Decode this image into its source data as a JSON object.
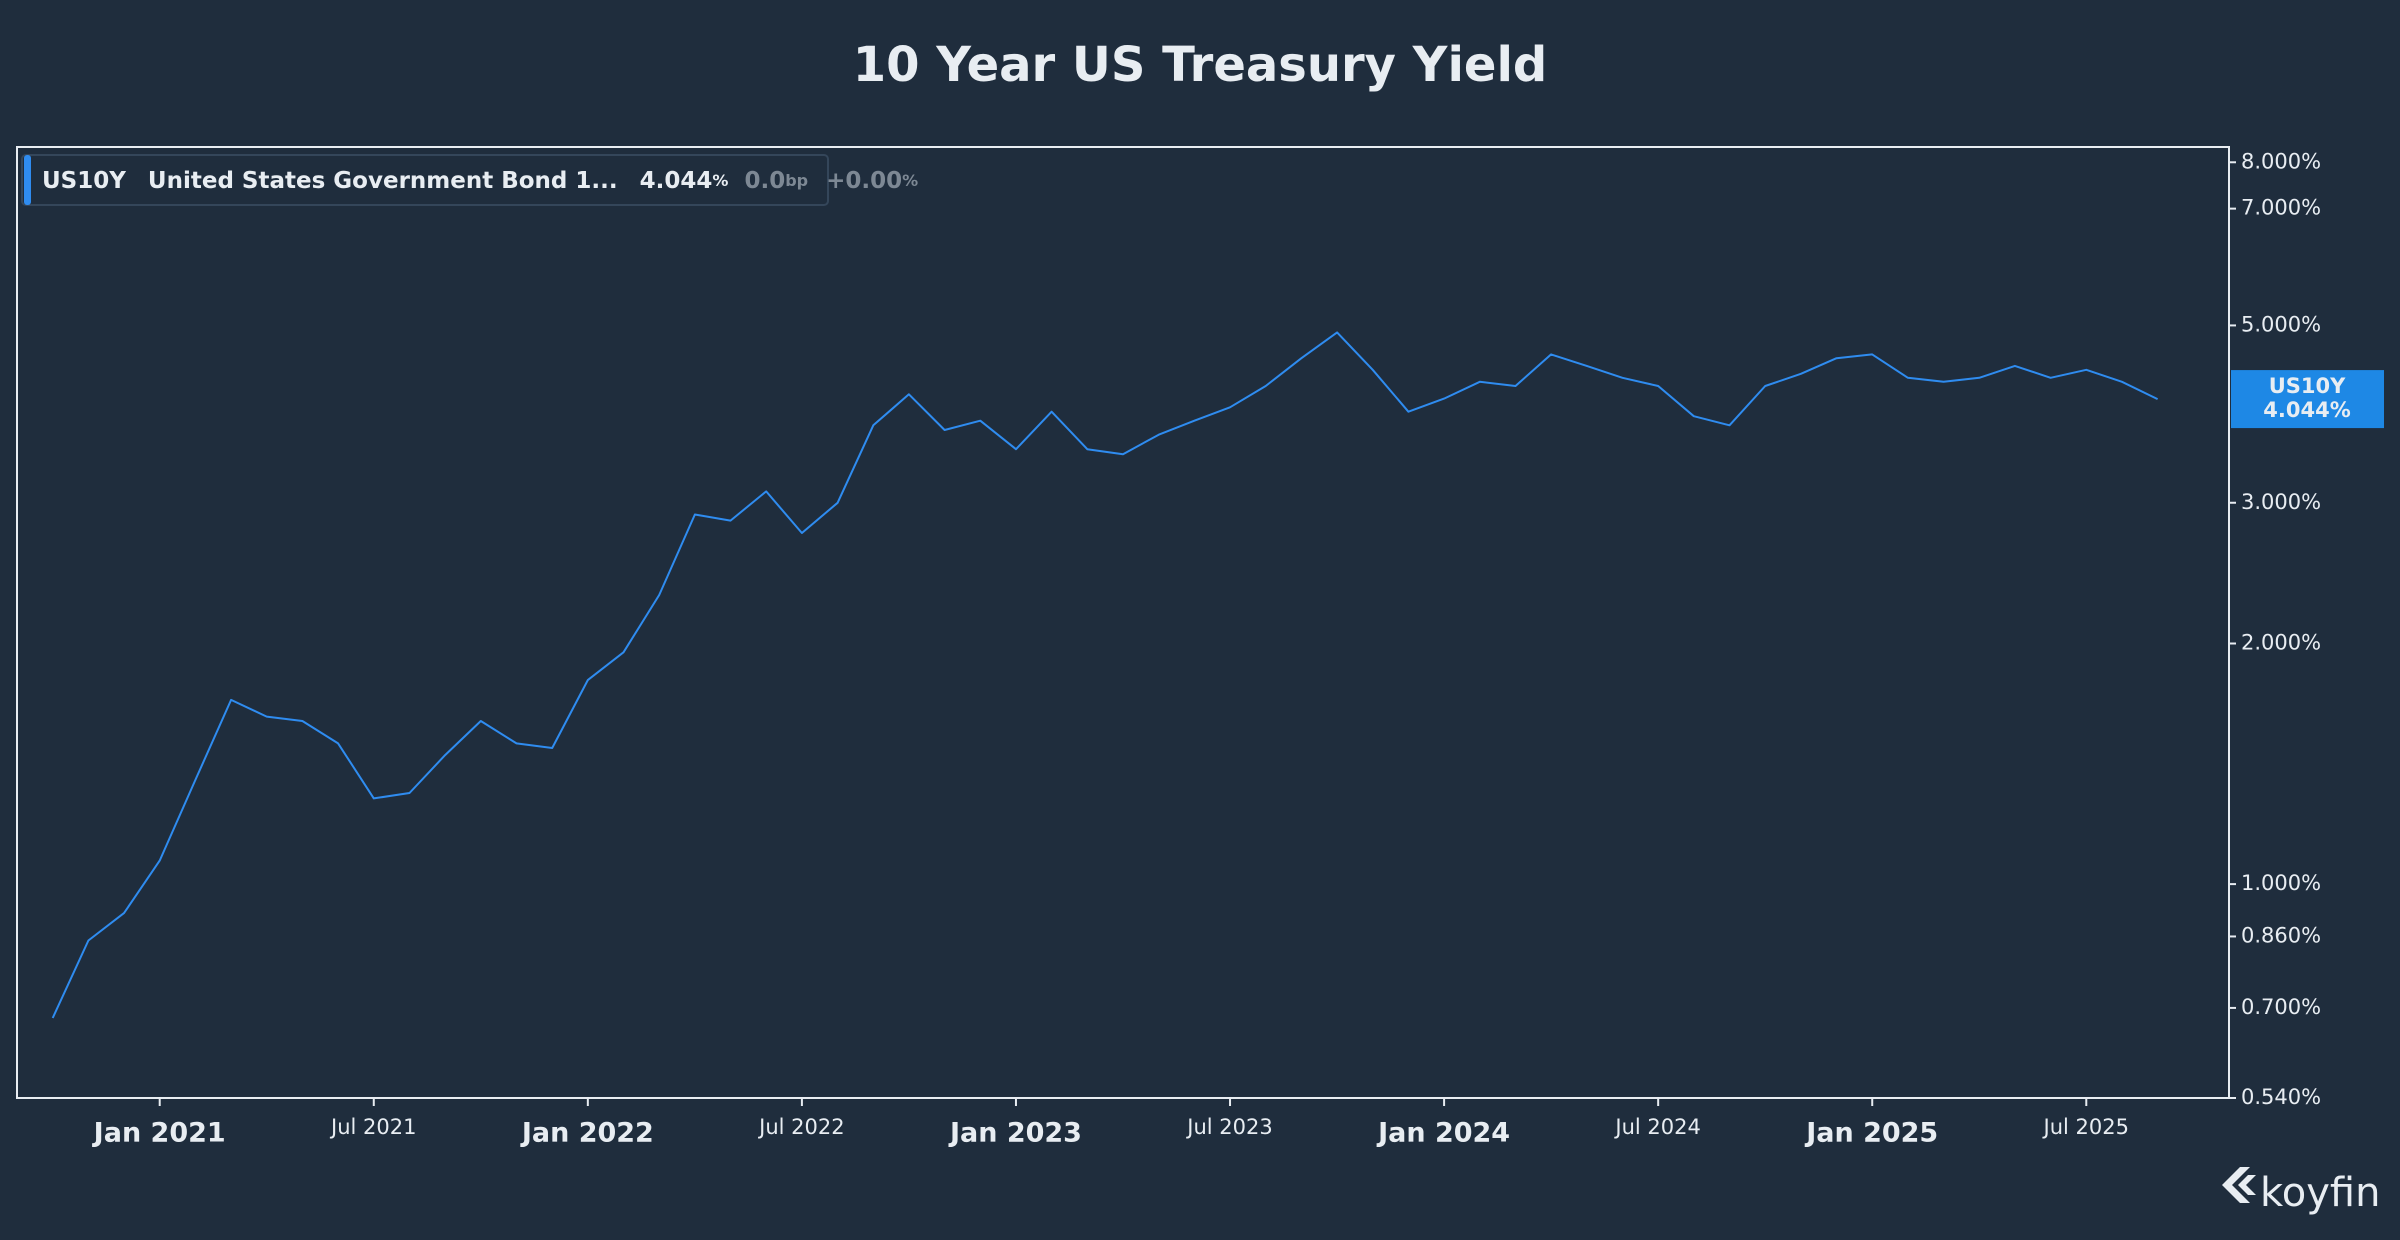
{
  "chart_data": {
    "type": "line",
    "title": "10 Year US Treasury Yield",
    "legend": {
      "ticker": "US10Y",
      "name": "United States Government Bond 1...",
      "value": "4.044",
      "value_unit": "%",
      "change": "0.0",
      "change_unit": "bp",
      "change_pct": "+0.00",
      "change_pct_unit": "%"
    },
    "badge": {
      "label": "US10Y",
      "value": "4.044%"
    },
    "watermark": "koyfin",
    "log_scale": true,
    "x": [
      "2020-10",
      "2020-11",
      "2020-12",
      "2021-01",
      "2021-02",
      "2021-03",
      "2021-04",
      "2021-05",
      "2021-06",
      "2021-07",
      "2021-08",
      "2021-09",
      "2021-10",
      "2021-11",
      "2021-12",
      "2022-01",
      "2022-02",
      "2022-03",
      "2022-04",
      "2022-05",
      "2022-06",
      "2022-07",
      "2022-08",
      "2022-09",
      "2022-10",
      "2022-11",
      "2022-12",
      "2023-01",
      "2023-02",
      "2023-03",
      "2023-04",
      "2023-05",
      "2023-06",
      "2023-07",
      "2023-08",
      "2023-09",
      "2023-10",
      "2023-11",
      "2023-12",
      "2024-01",
      "2024-02",
      "2024-03",
      "2024-04",
      "2024-05",
      "2024-06",
      "2024-07",
      "2024-08",
      "2024-09",
      "2024-10",
      "2024-11",
      "2024-12",
      "2025-01",
      "2025-02",
      "2025-03",
      "2025-04",
      "2025-05",
      "2025-06",
      "2025-07",
      "2025-08",
      "2025-09"
    ],
    "series": [
      {
        "name": "US10Y",
        "color": "#2f8cf0",
        "values": [
          0.68,
          0.85,
          0.92,
          1.07,
          1.35,
          1.7,
          1.62,
          1.6,
          1.5,
          1.28,
          1.3,
          1.45,
          1.6,
          1.5,
          1.48,
          1.8,
          1.95,
          2.3,
          2.9,
          2.85,
          3.1,
          2.75,
          3.0,
          3.75,
          4.1,
          3.7,
          3.8,
          3.5,
          3.9,
          3.5,
          3.45,
          3.65,
          3.8,
          3.95,
          4.2,
          4.55,
          4.9,
          4.4,
          3.9,
          4.05,
          4.25,
          4.2,
          4.6,
          4.45,
          4.3,
          4.2,
          3.85,
          3.75,
          4.2,
          4.35,
          4.55,
          4.6,
          4.3,
          4.25,
          4.3,
          4.45,
          4.3,
          4.4,
          4.25,
          4.044
        ]
      }
    ],
    "xlim": [
      "2020-09",
      "2025-11"
    ],
    "xticks": [
      {
        "value": "2021-01",
        "label": "Jan 2021"
      },
      {
        "value": "2021-07",
        "label": "Jul 2021"
      },
      {
        "value": "2022-01",
        "label": "Jan 2022"
      },
      {
        "value": "2022-07",
        "label": "Jul 2022"
      },
      {
        "value": "2023-01",
        "label": "Jan 2023"
      },
      {
        "value": "2023-07",
        "label": "Jul 2023"
      },
      {
        "value": "2024-01",
        "label": "Jan 2024"
      },
      {
        "value": "2024-07",
        "label": "Jul 2024"
      },
      {
        "value": "2025-01",
        "label": "Jan 2025"
      },
      {
        "value": "2025-07",
        "label": "Jul 2025"
      }
    ],
    "ylim": [
      0.54,
      8.36
    ],
    "yticks": [
      {
        "value": 8,
        "label": "8.000%"
      },
      {
        "value": 7,
        "label": "7.000%"
      },
      {
        "value": 5,
        "label": "5.000%"
      },
      {
        "value": 3,
        "label": "3.000%"
      },
      {
        "value": 2,
        "label": "2.000%"
      },
      {
        "value": 1,
        "label": "1.000%"
      },
      {
        "value": 0.86,
        "label": "0.860%"
      },
      {
        "value": 0.7,
        "label": "0.700%"
      },
      {
        "value": 0.54,
        "label": "0.540%"
      }
    ]
  }
}
